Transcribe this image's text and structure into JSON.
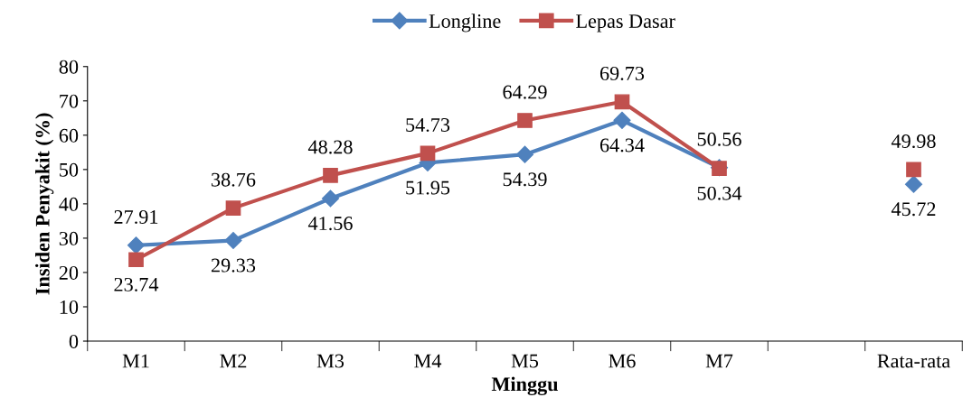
{
  "chart_data": {
    "type": "line",
    "xlabel": "Minggu",
    "ylabel": "Insiden Penyakit (%)",
    "categories": [
      "M1",
      "M2",
      "M3",
      "M4",
      "M5",
      "M6",
      "M7",
      null,
      "Rata-rata"
    ],
    "series": [
      {
        "name": "Longline",
        "color": "#4f81bd",
        "marker": "diamond",
        "values": [
          27.91,
          29.33,
          41.56,
          51.95,
          54.39,
          64.34,
          50.56,
          null,
          45.72
        ]
      },
      {
        "name": "Lepas Dasar",
        "color": "#c0504d",
        "marker": "square",
        "values": [
          23.74,
          38.76,
          48.28,
          54.73,
          64.29,
          69.73,
          50.34,
          null,
          49.98
        ]
      }
    ],
    "ylim": [
      0,
      80
    ],
    "yticks": [
      0,
      10,
      20,
      30,
      40,
      50,
      60,
      70,
      80
    ],
    "data_labels": true,
    "legend": "top",
    "grid": false,
    "line_style": "solid"
  }
}
